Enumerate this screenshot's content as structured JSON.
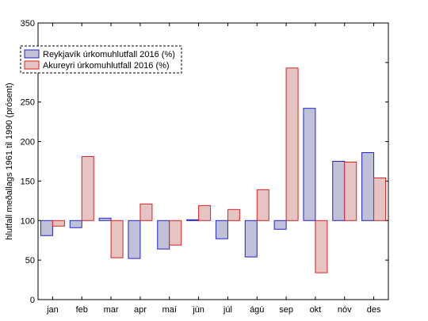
{
  "chart_data": {
    "type": "bar",
    "title": "",
    "xlabel": "",
    "ylabel": "hlutfall meðallags 1961 til 1990 (prósent)",
    "ylim": [
      0,
      350
    ],
    "yticks": [
      0,
      50,
      100,
      150,
      200,
      250,
      300,
      350
    ],
    "baseline": 100,
    "grid": false,
    "legend_position": "top-left",
    "categories": [
      "jan",
      "feb",
      "mar",
      "apr",
      "maí",
      "jún",
      "júl",
      "ágú",
      "sep",
      "okt",
      "nóv",
      "des"
    ],
    "series": [
      {
        "name": "Reykjavík úrkomuhlutfall 2016 (%)",
        "fill": "#c0c0d8",
        "stroke": "#2222cc",
        "values": [
          81,
          91,
          103,
          52,
          64,
          101,
          77,
          54,
          89,
          242,
          175,
          186
        ]
      },
      {
        "name": "Akureyri úrkomuhlutfall 2016 (%)",
        "fill": "#e6c4c4",
        "stroke": "#dd2222",
        "values": [
          93,
          181,
          53,
          121,
          69,
          119,
          114,
          139,
          293,
          34,
          174,
          154
        ]
      }
    ]
  }
}
